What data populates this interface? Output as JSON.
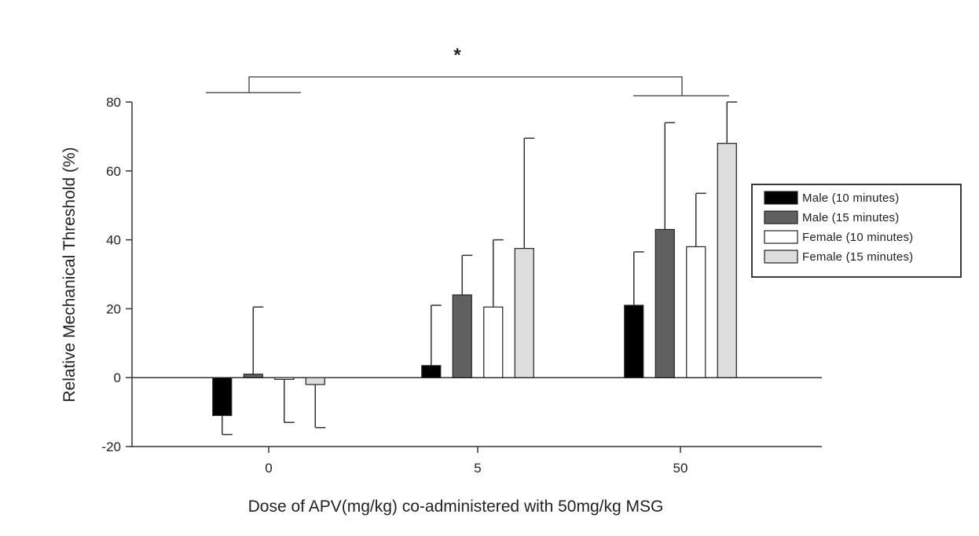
{
  "chart_data": {
    "type": "bar",
    "title": "",
    "xlabel": "Dose of APV(mg/kg) co-administered with 50mg/kg MSG",
    "ylabel": "Relative Mechanical Threshold (%)",
    "categories": [
      "0",
      "5",
      "50"
    ],
    "ylim": [
      -20,
      80
    ],
    "yticks": [
      -20,
      0,
      20,
      40,
      60,
      80
    ],
    "grid": false,
    "legend_position": "right",
    "series": [
      {
        "name": "Male (10 minutes)",
        "color": "#000000",
        "values": [
          -11,
          3.5,
          21
        ],
        "errors": [
          5.5,
          17.5,
          15.5
        ],
        "error_direction": [
          "down",
          "up",
          "up"
        ]
      },
      {
        "name": "Male (15 minutes)",
        "color": "#606060",
        "values": [
          1,
          24,
          43
        ],
        "errors": [
          19.5,
          11.5,
          31
        ],
        "error_direction": [
          "up",
          "up",
          "up"
        ]
      },
      {
        "name": "Female (10 minutes)",
        "color": "#ffffff",
        "values": [
          -0.5,
          20.5,
          38
        ],
        "errors": [
          12.5,
          19.5,
          15.5
        ],
        "error_direction": [
          "down",
          "up",
          "up"
        ]
      },
      {
        "name": "Female (15 minutes)",
        "color": "#dddddd",
        "values": [
          -2,
          37.5,
          68
        ],
        "errors": [
          12.5,
          32,
          12
        ],
        "error_direction": [
          "down",
          "up",
          "up"
        ]
      }
    ],
    "annotations": [
      {
        "text": "*",
        "between": [
          "0",
          "50"
        ]
      }
    ]
  }
}
